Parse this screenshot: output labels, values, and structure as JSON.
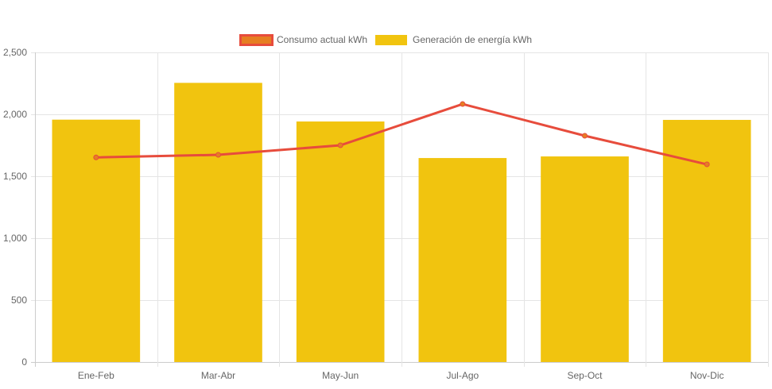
{
  "chart_data": {
    "type": "bar",
    "categories": [
      "Ene-Feb",
      "Mar-Abr",
      "May-Jun",
      "Jul-Ago",
      "Sep-Oct",
      "Nov-Dic"
    ],
    "series": [
      {
        "name": "Consumo actual kWh",
        "type": "line",
        "values": [
          1652,
          1673,
          1750,
          2083,
          1827,
          1596
        ],
        "color": "#e74c3c",
        "point_color": "#e67e22"
      },
      {
        "name": "Generación de energía kWh",
        "type": "bar",
        "values": [
          1957,
          2254,
          1942,
          1647,
          1660,
          1955
        ],
        "color": "#f1c40f"
      }
    ],
    "ylim": [
      0,
      2500
    ],
    "yticks": [
      0,
      500,
      1000,
      1500,
      2000,
      2500
    ],
    "ytick_labels": [
      "0",
      "500",
      "1,000",
      "1,500",
      "2,000",
      "2,500"
    ],
    "grid": true,
    "legend_position": "top"
  }
}
